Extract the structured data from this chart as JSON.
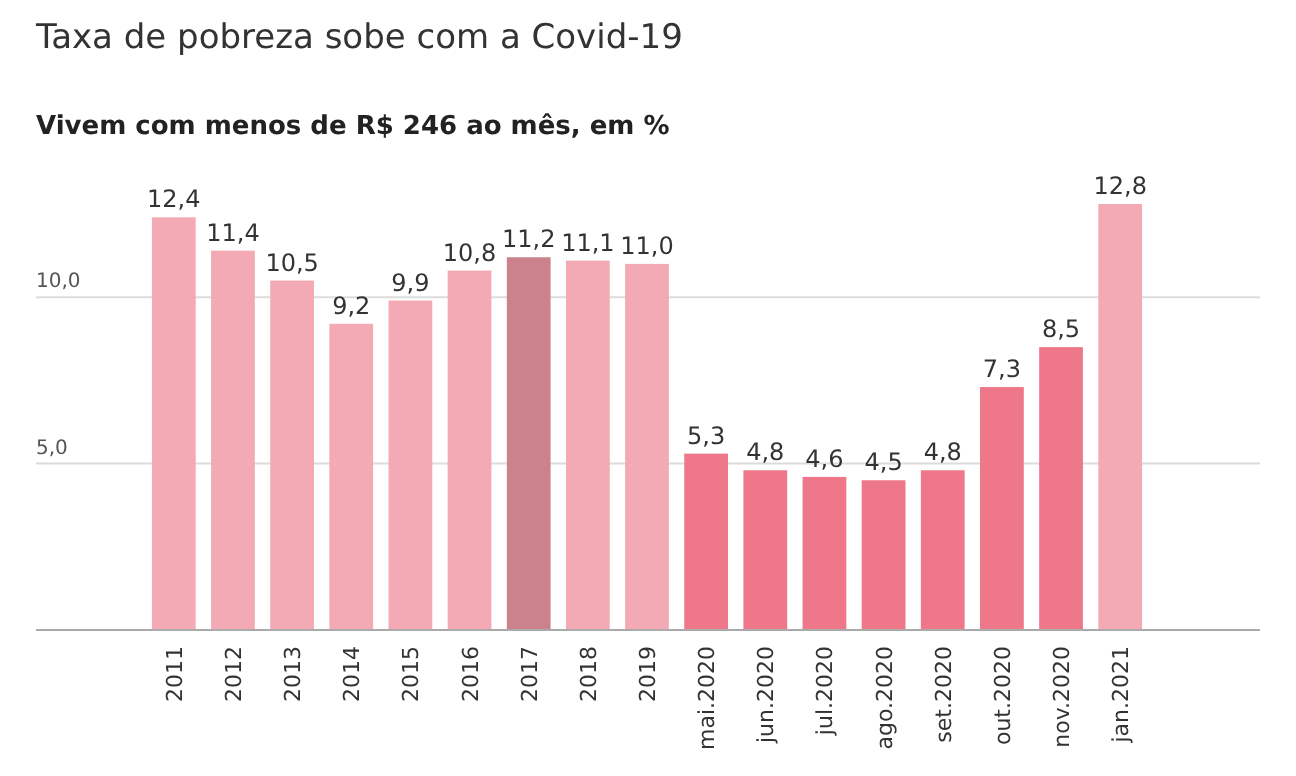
{
  "chart_data": {
    "type": "bar",
    "title": "Taxa de pobreza sobe com a Covid-19",
    "subtitle": "Vivem com menos de R$ 246 ao mês, em %",
    "categories": [
      "2011",
      "2012",
      "2013",
      "2014",
      "2015",
      "2016",
      "2017",
      "2018",
      "2019",
      "mai.2020",
      "jun.2020",
      "jul.2020",
      "ago.2020",
      "set.2020",
      "out.2020",
      "nov.2020",
      "jan.2021"
    ],
    "values": [
      12.4,
      11.4,
      10.5,
      9.2,
      9.9,
      10.8,
      11.2,
      11.1,
      11.0,
      5.3,
      4.8,
      4.6,
      4.5,
      4.8,
      7.3,
      8.5,
      12.8
    ],
    "value_labels": [
      "12,4",
      "11,4",
      "10,5",
      "9,2",
      "9,9",
      "10,8",
      "11,2",
      "11,1",
      "11,0",
      "5,3",
      "4,8",
      "4,6",
      "4,5",
      "4,8",
      "7,3",
      "8,5",
      "12,8"
    ],
    "colors": [
      "#f4aab4",
      "#f4aab4",
      "#f4aab4",
      "#f4aab4",
      "#f4aab4",
      "#f4aab4",
      "#cc828d",
      "#f4aab4",
      "#f4aab4",
      "#ee7889",
      "#ee7889",
      "#ee7889",
      "#ee7889",
      "#ee7889",
      "#ee7889",
      "#ee7889",
      "#f4aab4"
    ],
    "ylim": [
      0,
      12.8
    ],
    "yticks": [
      {
        "value": 5,
        "label": "5,0"
      },
      {
        "value": 10,
        "label": "10,0"
      }
    ],
    "grid": "y"
  }
}
